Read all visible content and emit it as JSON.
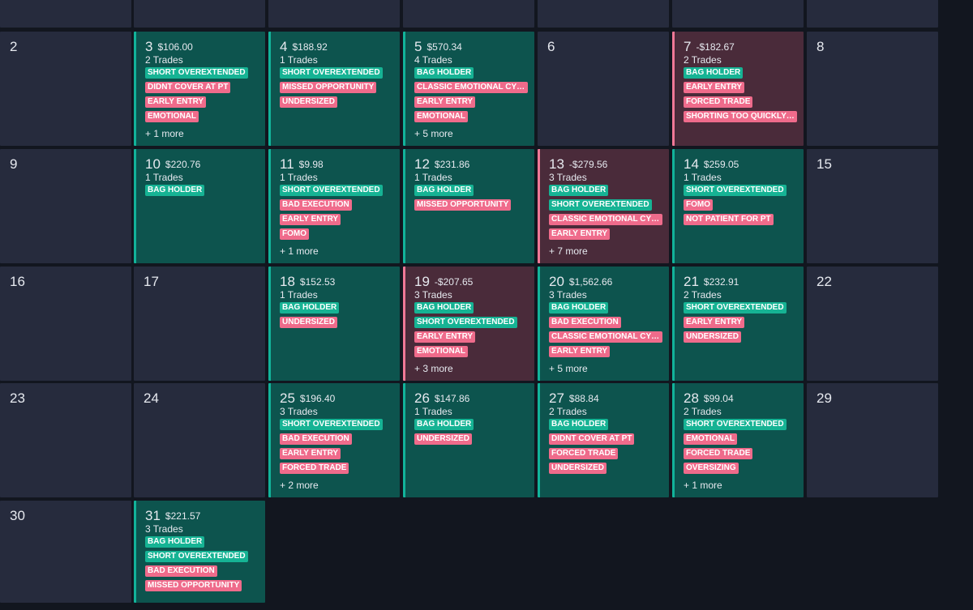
{
  "calendar": {
    "colors": {
      "background": "#12161f",
      "empty_cell": "#262b3d",
      "profit_cell": "#0d544e",
      "profit_border": "#12b39a",
      "loss_cell": "#4a2b3a",
      "loss_border": "#f07896",
      "good_tag": "#16b394",
      "bad_tag": "#ef6b8b"
    },
    "weeks": [
      {
        "days": [
          {
            "empty": true,
            "col": 0
          },
          {
            "empty": true,
            "col": 1
          },
          {
            "empty": true,
            "col": 2
          },
          {
            "empty": true,
            "col": 3
          },
          {
            "empty": true,
            "col": 4
          },
          {
            "empty": true,
            "col": 5
          },
          {
            "empty": true,
            "col": 6
          }
        ]
      },
      {
        "days": [
          {
            "day": "2",
            "col": 0
          },
          {
            "day": "3",
            "pnl": "$106.00",
            "trades": "2 Trades",
            "status": "profit",
            "tags": [
              [
                "SHORT OVEREXTENDED",
                "g"
              ],
              [
                "DIDNT COVER AT PT",
                "r"
              ],
              [
                "EARLY ENTRY",
                "r"
              ],
              [
                "EMOTIONAL",
                "r"
              ]
            ],
            "more": "+ 1 more",
            "col": 1
          },
          {
            "day": "4",
            "pnl": "$188.92",
            "trades": "1 Trades",
            "status": "profit",
            "tags": [
              [
                "SHORT OVEREXTENDED",
                "g"
              ],
              [
                "MISSED OPPORTUNITY",
                "r"
              ],
              [
                "UNDERSIZED",
                "r"
              ]
            ],
            "col": 2
          },
          {
            "day": "5",
            "pnl": "$570.34",
            "trades": "4 Trades",
            "status": "profit",
            "tags": [
              [
                "BAG HOLDER",
                "g"
              ],
              [
                "CLASSIC EMOTIONAL CYCLE",
                "r"
              ],
              [
                "EARLY ENTRY",
                "r"
              ],
              [
                "EMOTIONAL",
                "r"
              ]
            ],
            "more": "+ 5 more",
            "col": 3
          },
          {
            "day": "6",
            "col": 4
          },
          {
            "day": "7",
            "pnl": "-$182.67",
            "trades": "2 Trades",
            "status": "loss",
            "tags": [
              [
                "BAG HOLDER",
                "g"
              ],
              [
                "EARLY ENTRY",
                "r"
              ],
              [
                "FORCED TRADE",
                "r"
              ],
              [
                "SHORTING TOO QUICKLY ...",
                "r"
              ]
            ],
            "col": 5
          },
          {
            "day": "8",
            "col": 6
          }
        ]
      },
      {
        "days": [
          {
            "day": "9",
            "col": 0
          },
          {
            "day": "10",
            "pnl": "$220.76",
            "trades": "1 Trades",
            "status": "profit",
            "tags": [
              [
                "BAG HOLDER",
                "g"
              ]
            ],
            "col": 1
          },
          {
            "day": "11",
            "pnl": "$9.98",
            "trades": "1 Trades",
            "status": "profit",
            "tags": [
              [
                "SHORT OVEREXTENDED",
                "g"
              ],
              [
                "BAD EXECUTION",
                "r"
              ],
              [
                "EARLY ENTRY",
                "r"
              ],
              [
                "FOMO",
                "r"
              ]
            ],
            "more": "+ 1 more",
            "col": 2
          },
          {
            "day": "12",
            "pnl": "$231.86",
            "trades": "1 Trades",
            "status": "profit",
            "tags": [
              [
                "BAG HOLDER",
                "g"
              ],
              [
                "MISSED OPPORTUNITY",
                "r"
              ]
            ],
            "col": 3
          },
          {
            "day": "13",
            "pnl": "-$279.56",
            "trades": "3 Trades",
            "status": "loss",
            "tags": [
              [
                "BAG HOLDER",
                "g"
              ],
              [
                "SHORT OVEREXTENDED",
                "g"
              ],
              [
                "CLASSIC EMOTIONAL CYCLE",
                "r"
              ],
              [
                "EARLY ENTRY",
                "r"
              ]
            ],
            "more": "+ 7 more",
            "col": 4
          },
          {
            "day": "14",
            "pnl": "$259.05",
            "trades": "1 Trades",
            "status": "profit",
            "tags": [
              [
                "SHORT OVEREXTENDED",
                "g"
              ],
              [
                "FOMO",
                "r"
              ],
              [
                "NOT PATIENT FOR PT",
                "r"
              ]
            ],
            "col": 5
          },
          {
            "day": "15",
            "col": 6
          }
        ]
      },
      {
        "days": [
          {
            "day": "16",
            "col": 0
          },
          {
            "day": "17",
            "col": 1
          },
          {
            "day": "18",
            "pnl": "$152.53",
            "trades": "1 Trades",
            "status": "profit",
            "tags": [
              [
                "BAG HOLDER",
                "g"
              ],
              [
                "UNDERSIZED",
                "r"
              ]
            ],
            "col": 2
          },
          {
            "day": "19",
            "pnl": "-$207.65",
            "trades": "3 Trades",
            "status": "loss",
            "tags": [
              [
                "BAG HOLDER",
                "g"
              ],
              [
                "SHORT OVEREXTENDED",
                "g"
              ],
              [
                "EARLY ENTRY",
                "r"
              ],
              [
                "EMOTIONAL",
                "r"
              ]
            ],
            "more": "+ 3 more",
            "col": 3
          },
          {
            "day": "20",
            "pnl": "$1,562.66",
            "trades": "3 Trades",
            "status": "profit",
            "tags": [
              [
                "BAG HOLDER",
                "g"
              ],
              [
                "BAD EXECUTION",
                "r"
              ],
              [
                "CLASSIC EMOTIONAL CYCLE",
                "r"
              ],
              [
                "EARLY ENTRY",
                "r"
              ]
            ],
            "more": "+ 5 more",
            "col": 4
          },
          {
            "day": "21",
            "pnl": "$232.91",
            "trades": "2 Trades",
            "status": "profit",
            "tags": [
              [
                "SHORT OVEREXTENDED",
                "g"
              ],
              [
                "EARLY ENTRY",
                "r"
              ],
              [
                "UNDERSIZED",
                "r"
              ]
            ],
            "col": 5
          },
          {
            "day": "22",
            "col": 6
          }
        ]
      },
      {
        "days": [
          {
            "day": "23",
            "col": 0
          },
          {
            "day": "24",
            "col": 1
          },
          {
            "day": "25",
            "pnl": "$196.40",
            "trades": "3 Trades",
            "status": "profit",
            "tags": [
              [
                "SHORT OVEREXTENDED",
                "g"
              ],
              [
                "BAD EXECUTION",
                "r"
              ],
              [
                "EARLY ENTRY",
                "r"
              ],
              [
                "FORCED TRADE",
                "r"
              ]
            ],
            "more": "+ 2 more",
            "col": 2
          },
          {
            "day": "26",
            "pnl": "$147.86",
            "trades": "1 Trades",
            "status": "profit",
            "tags": [
              [
                "BAG HOLDER",
                "g"
              ],
              [
                "UNDERSIZED",
                "r"
              ]
            ],
            "col": 3
          },
          {
            "day": "27",
            "pnl": "$88.84",
            "trades": "2 Trades",
            "status": "profit",
            "tags": [
              [
                "BAG HOLDER",
                "g"
              ],
              [
                "DIDNT COVER AT PT",
                "r"
              ],
              [
                "FORCED TRADE",
                "r"
              ],
              [
                "UNDERSIZED",
                "r"
              ]
            ],
            "col": 4
          },
          {
            "day": "28",
            "pnl": "$99.04",
            "trades": "2 Trades",
            "status": "profit",
            "tags": [
              [
                "SHORT OVEREXTENDED",
                "g"
              ],
              [
                "EMOTIONAL",
                "r"
              ],
              [
                "FORCED TRADE",
                "r"
              ],
              [
                "OVERSIZING",
                "r"
              ]
            ],
            "more": "+ 1 more",
            "col": 5
          },
          {
            "day": "29",
            "col": 6
          }
        ]
      },
      {
        "days": [
          {
            "day": "30",
            "col": 0
          },
          {
            "day": "31",
            "pnl": "$221.57",
            "trades": "3 Trades",
            "status": "profit",
            "tags": [
              [
                "BAG HOLDER",
                "g"
              ],
              [
                "SHORT OVEREXTENDED",
                "g"
              ],
              [
                "BAD EXECUTION",
                "r"
              ],
              [
                "MISSED OPPORTUNITY",
                "r"
              ]
            ],
            "col": 1
          }
        ]
      }
    ]
  }
}
